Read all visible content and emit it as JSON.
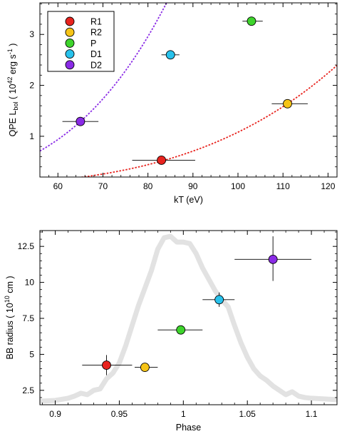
{
  "chart_data": [
    {
      "type": "scatter",
      "title": "",
      "xlabel": "kT (eV)",
      "ylabel_parts": {
        "pre": "QPE L",
        "sub": "bol",
        "mid": " ( 10",
        "sup1": "42",
        "post": " erg s",
        "sup2": "-1",
        "end": " )"
      },
      "xlim": [
        56,
        122
      ],
      "ylim": [
        0.2,
        3.62
      ],
      "xticks": [
        60,
        70,
        80,
        90,
        100,
        110,
        120
      ],
      "yticks": [
        1,
        2,
        3
      ],
      "grid": false,
      "legend_position": "top-left",
      "series": [
        {
          "name": "R1",
          "color": "#e8231e",
          "x": 83,
          "y": 0.53,
          "xerr": [
            76.5,
            90.5
          ]
        },
        {
          "name": "R2",
          "color": "#f6c417",
          "x": 111,
          "y": 1.64,
          "xerr": [
            107.5,
            115.5
          ]
        },
        {
          "name": "P",
          "color": "#3ed42c",
          "x": 103,
          "y": 3.26,
          "xerr": [
            101,
            105.5
          ]
        },
        {
          "name": "D1",
          "color": "#28c2ec",
          "x": 85,
          "y": 2.6,
          "xerr": [
            83,
            87
          ]
        },
        {
          "name": "D2",
          "color": "#8a2be6",
          "x": 65,
          "y": 1.29,
          "xerr": [
            61,
            69
          ]
        }
      ],
      "curves": [
        {
          "color": "#8a2be6",
          "style": "dotted",
          "y_at_ref": 1.29,
          "ref_x": 65,
          "power": 4
        },
        {
          "color": "#e8231e",
          "style": "dotted",
          "y_at_ref": 1.64,
          "ref_x": 111,
          "power": 4
        }
      ]
    },
    {
      "type": "scatter",
      "title": "",
      "xlabel": "Phase",
      "ylabel_parts": {
        "pre": "BB radius ( 10",
        "sup1": "10",
        "post": " cm )"
      },
      "xlim": [
        0.888,
        1.12
      ],
      "ylim": [
        1.5,
        13.6
      ],
      "xticks": [
        0.9,
        0.95,
        1,
        1.05,
        1.1
      ],
      "xtick_labels": [
        "0.9",
        "0.95",
        "1",
        "1.05",
        "1.1"
      ],
      "yticks": [
        2.5,
        5,
        7.5,
        10,
        12.5
      ],
      "ytick_labels": [
        "2.5",
        "5",
        "7.5",
        "10",
        "12.5"
      ],
      "grid": false,
      "points": [
        {
          "name": "R1",
          "color": "#e8231e",
          "x": 0.94,
          "y": 4.25,
          "xerr": [
            0.921,
            0.96
          ],
          "yerr": [
            3.55,
            4.95
          ]
        },
        {
          "name": "R2",
          "color": "#f6c417",
          "x": 0.97,
          "y": 4.1,
          "xerr": [
            0.962,
            0.98
          ],
          "yerr": [
            4.1,
            4.1
          ]
        },
        {
          "name": "P",
          "color": "#3ed42c",
          "x": 0.998,
          "y": 6.7,
          "xerr": [
            0.98,
            1.015
          ],
          "yerr": [
            6.7,
            6.7
          ]
        },
        {
          "name": "D1",
          "color": "#28c2ec",
          "x": 1.028,
          "y": 8.8,
          "xerr": [
            1.015,
            1.04
          ],
          "yerr": [
            8.3,
            9.3
          ]
        },
        {
          "name": "D2",
          "color": "#8a2be6",
          "x": 1.07,
          "y": 11.6,
          "xerr": [
            1.04,
            1.1
          ],
          "yerr": [
            10.1,
            13.2
          ]
        }
      ],
      "background_curve": {
        "color": "#e2e2e2",
        "x": [
          0.888,
          0.9,
          0.91,
          0.915,
          0.92,
          0.925,
          0.93,
          0.935,
          0.94,
          0.945,
          0.95,
          0.955,
          0.96,
          0.965,
          0.97,
          0.975,
          0.98,
          0.985,
          0.99,
          0.995,
          1.0,
          1.005,
          1.01,
          1.015,
          1.02,
          1.025,
          1.03,
          1.035,
          1.04,
          1.045,
          1.05,
          1.055,
          1.06,
          1.065,
          1.07,
          1.075,
          1.08,
          1.085,
          1.09,
          1.095,
          1.1,
          1.11,
          1.12
        ],
        "y": [
          1.75,
          1.8,
          1.95,
          2.1,
          2.3,
          2.2,
          2.5,
          2.6,
          3.3,
          3.7,
          4.4,
          5.6,
          7.0,
          8.4,
          9.6,
          10.8,
          12.3,
          13.1,
          13.2,
          12.8,
          12.8,
          12.7,
          12.0,
          11.0,
          10.2,
          9.4,
          8.8,
          8.3,
          7.0,
          5.8,
          4.8,
          4.0,
          3.5,
          3.2,
          2.8,
          2.5,
          2.2,
          2.4,
          2.1,
          2.0,
          1.95,
          1.9,
          1.85
        ]
      }
    }
  ]
}
